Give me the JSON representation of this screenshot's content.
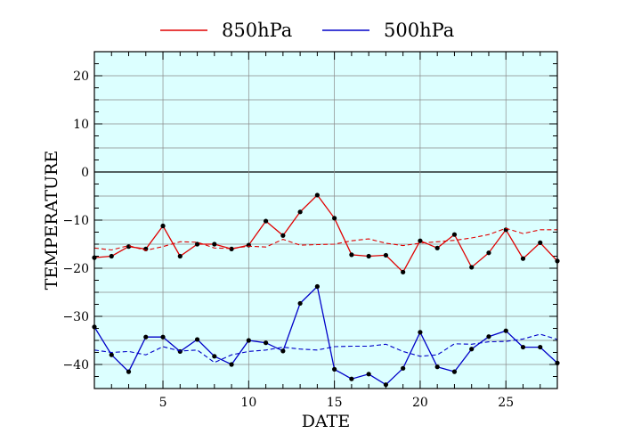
{
  "chart_data": {
    "type": "line",
    "xlabel": "DATE",
    "ylabel": "TEMPERATURE",
    "xlim": [
      1,
      28
    ],
    "ylim": [
      -45,
      25
    ],
    "xticks": [
      5,
      10,
      15,
      20,
      25
    ],
    "yticks": [
      20,
      10,
      0,
      -10,
      -20,
      -30,
      -40
    ],
    "ytick_labels": [
      "20",
      "10",
      "0",
      "−10",
      "−20",
      "−30",
      "−40"
    ],
    "grid": true,
    "background_color": "#dcffff",
    "zero_line": true,
    "legend": {
      "placement": "top",
      "entries": [
        "850hPa",
        "500hPa"
      ]
    },
    "x": [
      1,
      2,
      3,
      4,
      5,
      6,
      7,
      8,
      9,
      10,
      11,
      12,
      13,
      14,
      15,
      16,
      17,
      18,
      19,
      20,
      21,
      22,
      23,
      24,
      25,
      26,
      27,
      28
    ],
    "series": [
      {
        "name": "850hPa",
        "color": "#e00000",
        "style": "solid",
        "markers": true,
        "values": [
          -17.8,
          -17.5,
          -15.5,
          -16.0,
          -11.2,
          -17.5,
          -15.0,
          -15.0,
          -16.0,
          -15.2,
          -10.2,
          -13.2,
          -8.3,
          -4.8,
          -9.6,
          -17.2,
          -17.5,
          -17.3,
          -20.8,
          -14.3,
          -15.8,
          -13.0,
          -19.8,
          -16.8,
          -12.0,
          -18.0,
          -14.7,
          -18.5
        ]
      },
      {
        "name": "850hPa",
        "color": "#e00000",
        "style": "dashed",
        "markers": false,
        "values": [
          -15.8,
          -16.2,
          -15.3,
          -16.3,
          -15.5,
          -14.5,
          -14.6,
          -15.8,
          -15.9,
          -15.4,
          -15.6,
          -14.0,
          -15.2,
          -15.1,
          -15.0,
          -14.3,
          -13.9,
          -14.8,
          -15.3,
          -14.8,
          -14.5,
          -14.2,
          -13.7,
          -13.0,
          -11.7,
          -12.8,
          -12.0,
          -12.0
        ]
      },
      {
        "name": "500hPa",
        "color": "#0000c8",
        "style": "solid",
        "markers": true,
        "values": [
          -32.2,
          -38.0,
          -41.5,
          -34.3,
          -34.3,
          -37.3,
          -34.8,
          -38.3,
          -40.0,
          -35.0,
          -35.5,
          -37.2,
          -27.3,
          -23.8,
          -41.0,
          -43.0,
          -42.0,
          -44.2,
          -40.8,
          -33.3,
          -40.5,
          -41.5,
          -36.8,
          -34.2,
          -33.0,
          -36.4,
          -36.4,
          -39.7
        ]
      },
      {
        "name": "500hPa",
        "color": "#0000c8",
        "style": "dashed",
        "markers": false,
        "values": [
          -37.0,
          -37.5,
          -37.3,
          -38.0,
          -36.3,
          -37.2,
          -37.0,
          -39.6,
          -38.0,
          -37.3,
          -37.0,
          -36.4,
          -36.8,
          -37.0,
          -36.3,
          -36.2,
          -36.2,
          -35.8,
          -37.3,
          -38.3,
          -38.0,
          -35.7,
          -35.8,
          -35.3,
          -35.2,
          -34.7,
          -33.7,
          -34.8
        ]
      }
    ]
  }
}
